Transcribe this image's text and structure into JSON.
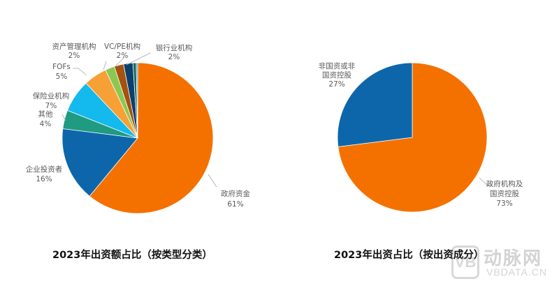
{
  "chart_data": [
    {
      "type": "pie",
      "title": "2023年出资额占比（按类型分类）",
      "start_angle": "12 o'clock, clockwise",
      "slices": [
        {
          "label": "政府资金",
          "value": 61,
          "display": "61%",
          "color": "#F47100"
        },
        {
          "label": "企业投资者",
          "value": 16,
          "display": "16%",
          "color": "#0E66AA"
        },
        {
          "label": "其他",
          "value": 4,
          "display": "4%",
          "color": "#1F9B82"
        },
        {
          "label": "保险业机构",
          "value": 7,
          "display": "7%",
          "color": "#14B9EE"
        },
        {
          "label": "FOFs",
          "value": 5,
          "display": "5%",
          "color": "#F7A035"
        },
        {
          "label": "资产管理机构",
          "value": 2,
          "display": "2%",
          "color": "#8CC850"
        },
        {
          "label": "VC/PE机构",
          "value": 2,
          "display": "2%",
          "color": "#A6520E"
        },
        {
          "label": "银行业机构",
          "value": 2,
          "display": "2%",
          "color": "#0B3F6E"
        },
        {
          "label": "",
          "value": 0.7,
          "display": "",
          "color": "#176B5A"
        },
        {
          "label": "",
          "value": 0.3,
          "display": "",
          "color": "#2A8FC4"
        }
      ]
    },
    {
      "type": "pie",
      "title": "2023年出资占比（按出资成分）",
      "start_angle": "12 o'clock, clockwise",
      "slices": [
        {
          "label": "政府机构及国资控股",
          "value": 73,
          "display": "73%",
          "color": "#F47100"
        },
        {
          "label": "非国资或非国资控股",
          "value": 27,
          "display": "27%",
          "color": "#0E66AA"
        }
      ]
    }
  ],
  "labels": {
    "left": {
      "gov": [
        "政府资金",
        "61%"
      ],
      "corp": [
        "企业投资者",
        "16%"
      ],
      "other": [
        "其他",
        "4%"
      ],
      "insurance": [
        "保险业机构",
        "7%"
      ],
      "fofs": [
        "FOFs",
        "5%"
      ],
      "asset_mgmt": [
        "资产管理机构",
        "2%"
      ],
      "vcpe": [
        "VC/PE机构",
        "2%"
      ],
      "bank": [
        "银行业机构",
        "2%"
      ]
    },
    "right": {
      "gov": [
        "政府机构及",
        "国资控股",
        "73%"
      ],
      "nongov": [
        "非国资或非",
        "国资控股",
        "27%"
      ]
    }
  },
  "titles": {
    "left": "2023年出资额占比（按类型分类）",
    "right": "2023年出资占比（按出资成分）"
  },
  "watermark": {
    "logo": "VB",
    "cn": "动脉网",
    "en": "VBDATA.CN"
  }
}
